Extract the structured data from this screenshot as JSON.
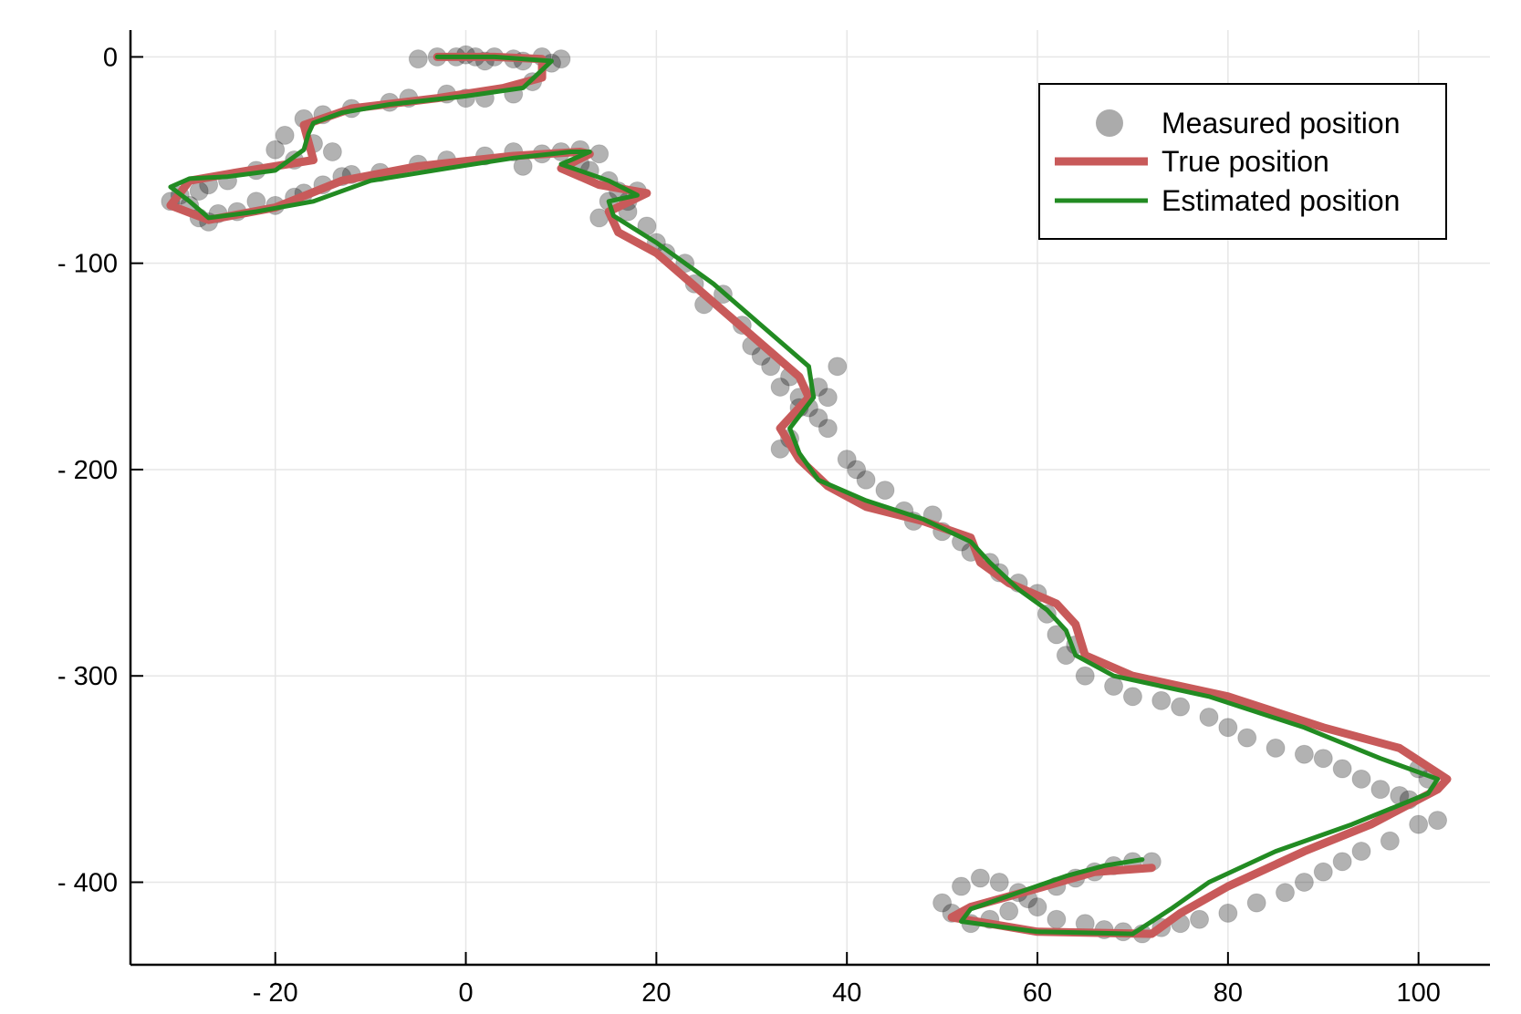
{
  "chart_data": {
    "type": "line",
    "title": "",
    "xlabel": "",
    "ylabel": "",
    "xlim": [
      -35.2,
      107.5
    ],
    "ylim": [
      -440.0,
      13.0
    ],
    "xticks": [
      -20,
      0,
      20,
      40,
      60,
      80,
      100
    ],
    "yticks": [
      0,
      -100,
      -200,
      -300,
      -400
    ],
    "xtick_labels": [
      "- 20",
      "0",
      "20",
      "40",
      "60",
      "80",
      "100"
    ],
    "ytick_labels": [
      "0",
      "- 100",
      "- 200",
      "- 300",
      "- 400"
    ],
    "grid": true,
    "legend_position": "top-right",
    "legend": [
      {
        "name": "Measured position",
        "type": "scatter",
        "color": "#888888"
      },
      {
        "name": "True position",
        "type": "line",
        "color": "#c85a5a"
      },
      {
        "name": "Estimated position",
        "type": "line",
        "color": "#228b22"
      }
    ],
    "series": [
      {
        "name": "True position",
        "type": "line",
        "color": "#c85a5a",
        "x": [
          -3,
          3,
          8,
          8,
          4,
          -3,
          -12,
          -17,
          -16,
          -24,
          -29,
          -31,
          -27,
          -20,
          -13,
          -5,
          5,
          12,
          13,
          10,
          14,
          19,
          15,
          16,
          20,
          25,
          30,
          35,
          36,
          33,
          35,
          38,
          42,
          48,
          53,
          54,
          57,
          62,
          64,
          65,
          70,
          80,
          90,
          98,
          103,
          102,
          95,
          88,
          80,
          75,
          72,
          60,
          51,
          53,
          60,
          66,
          72
        ],
        "y": [
          0,
          0,
          -1,
          -10,
          -15,
          -20,
          -25,
          -33,
          -50,
          -56,
          -60,
          -72,
          -79,
          -73,
          -60,
          -53,
          -48,
          -46,
          -47,
          -54,
          -62,
          -66,
          -75,
          -85,
          -95,
          -115,
          -135,
          -155,
          -165,
          -180,
          -195,
          -208,
          -218,
          -225,
          -233,
          -245,
          -255,
          -265,
          -275,
          -290,
          -300,
          -310,
          -325,
          -335,
          -350,
          -355,
          -372,
          -385,
          -402,
          -415,
          -425,
          -424,
          -417,
          -412,
          -403,
          -395,
          -393
        ]
      },
      {
        "name": "Estimated position",
        "type": "line",
        "color": "#228b22",
        "x": [
          -3,
          3,
          9,
          6,
          0,
          -8,
          -13,
          -16,
          -16.5,
          -17,
          -20,
          -25,
          -29,
          -31,
          -29,
          -27,
          -22,
          -16,
          -10,
          -2,
          5,
          11,
          13,
          10,
          15,
          18,
          15,
          15.5,
          20,
          26,
          31,
          36,
          36.5,
          34,
          35,
          37,
          42,
          48,
          53,
          55,
          58,
          61,
          63,
          64,
          68,
          78,
          88,
          96,
          102,
          101,
          93,
          85,
          78,
          74,
          70,
          60,
          52,
          53,
          58,
          63,
          67,
          71
        ],
        "y": [
          0,
          0,
          -2,
          -15,
          -19,
          -23,
          -27,
          -32,
          -37,
          -45,
          -55,
          -58,
          -59,
          -63,
          -70,
          -78,
          -75,
          -70,
          -60,
          -54,
          -49,
          -46,
          -46,
          -52,
          -60,
          -67,
          -70,
          -77,
          -90,
          -110,
          -130,
          -150,
          -165,
          -180,
          -192,
          -205,
          -215,
          -224,
          -235,
          -245,
          -258,
          -268,
          -278,
          -290,
          -300,
          -310,
          -325,
          -340,
          -350,
          -357,
          -372,
          -385,
          -400,
          -413,
          -425,
          -424,
          -419,
          -413,
          -405,
          -397,
          -392,
          -389
        ]
      },
      {
        "name": "Measured position",
        "type": "scatter",
        "color": "#888888",
        "x": [
          -5,
          -3,
          -1,
          0,
          1,
          2,
          3,
          5,
          6,
          8,
          9,
          10,
          -2,
          0,
          2,
          5,
          7,
          -6,
          -8,
          -12,
          -15,
          -17,
          -19,
          -20,
          -18,
          -16,
          -14,
          -22,
          -25,
          -27,
          -28,
          -30,
          -31,
          -29,
          -28,
          -27,
          -26,
          -24,
          -22,
          -20,
          -18,
          -17,
          -15,
          -13,
          -12,
          -9,
          -5,
          -2,
          2,
          5,
          8,
          10,
          12,
          14,
          6,
          12,
          13,
          15,
          16,
          17,
          18,
          15,
          14,
          17,
          19,
          20,
          21,
          23,
          24,
          25,
          27,
          29,
          30,
          31,
          32,
          33,
          34,
          35,
          36,
          37,
          38,
          33,
          34,
          35,
          37,
          38,
          39,
          40,
          41,
          42,
          44,
          46,
          47,
          49,
          50,
          52,
          53,
          55,
          56,
          58,
          60,
          61,
          62,
          63,
          64,
          65,
          68,
          70,
          73,
          75,
          78,
          80,
          82,
          85,
          88,
          90,
          92,
          94,
          96,
          98,
          99,
          100,
          101,
          102,
          100,
          97,
          94,
          92,
          90,
          88,
          86,
          83,
          80,
          77,
          75,
          73,
          71,
          69,
          67,
          65,
          62,
          60,
          58,
          56,
          54,
          52,
          50,
          51,
          53,
          55,
          57,
          59,
          62,
          64,
          66,
          68,
          70,
          72
        ],
        "y": [
          -1,
          0,
          0,
          1,
          0,
          -2,
          0,
          -1,
          -2,
          0,
          -3,
          -1,
          -18,
          -20,
          -20,
          -18,
          -12,
          -20,
          -22,
          -25,
          -28,
          -30,
          -38,
          -45,
          -50,
          -42,
          -46,
          -55,
          -60,
          -62,
          -65,
          -67,
          -70,
          -72,
          -78,
          -80,
          -76,
          -75,
          -70,
          -72,
          -68,
          -66,
          -62,
          -58,
          -57,
          -56,
          -52,
          -50,
          -48,
          -46,
          -47,
          -46,
          -45,
          -47,
          -53,
          -52,
          -55,
          -60,
          -65,
          -70,
          -65,
          -70,
          -78,
          -75,
          -82,
          -90,
          -95,
          -100,
          -110,
          -120,
          -115,
          -130,
          -140,
          -145,
          -150,
          -160,
          -155,
          -165,
          -170,
          -175,
          -180,
          -190,
          -185,
          -170,
          -160,
          -165,
          -150,
          -195,
          -200,
          -205,
          -210,
          -220,
          -225,
          -222,
          -230,
          -235,
          -240,
          -245,
          -250,
          -255,
          -260,
          -270,
          -280,
          -290,
          -285,
          -300,
          -305,
          -310,
          -312,
          -315,
          -320,
          -325,
          -330,
          -335,
          -338,
          -340,
          -345,
          -350,
          -355,
          -358,
          -360,
          -345,
          -350,
          -370,
          -372,
          -380,
          -385,
          -390,
          -395,
          -400,
          -405,
          -410,
          -415,
          -418,
          -420,
          -422,
          -425,
          -424,
          -423,
          -420,
          -418,
          -412,
          -405,
          -400,
          -398,
          -402,
          -410,
          -415,
          -420,
          -418,
          -414,
          -408,
          -402,
          -398,
          -395,
          -392,
          -390,
          -390
        ]
      }
    ]
  }
}
